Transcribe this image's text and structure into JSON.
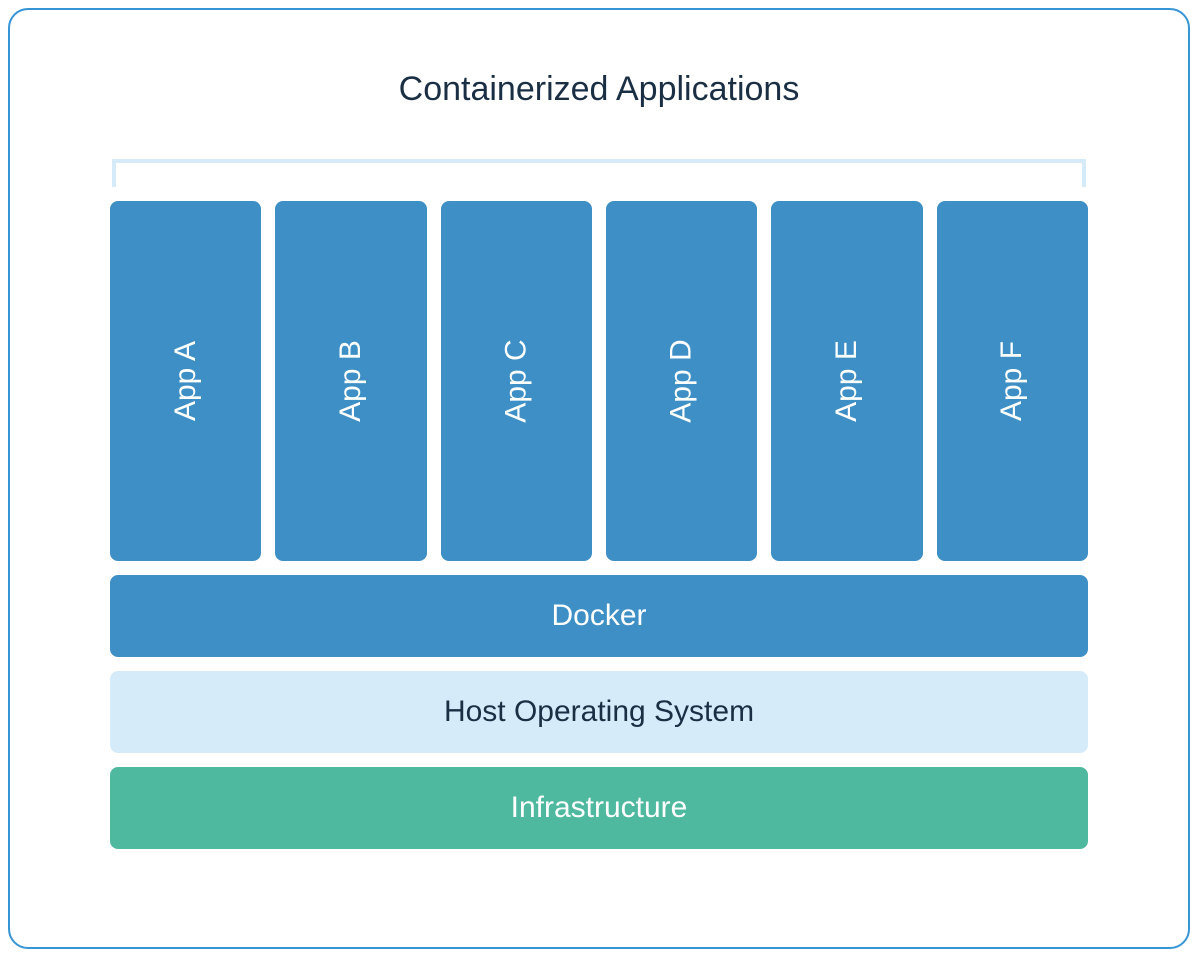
{
  "diagram": {
    "title": "Containerized Applications",
    "title_color": "#1a2e44",
    "title_fontsize": 34,
    "border_color": "#3795d5",
    "border_radius": 20,
    "background_color": "#ffffff",
    "bracket_color": "#d6ebfa",
    "apps": [
      {
        "label": "App A",
        "bg_color": "#3d8fc5",
        "text_color": "#ffffff"
      },
      {
        "label": "App B",
        "bg_color": "#3d8fc5",
        "text_color": "#ffffff"
      },
      {
        "label": "App C",
        "bg_color": "#3d8fc5",
        "text_color": "#ffffff"
      },
      {
        "label": "App D",
        "bg_color": "#3d8fc5",
        "text_color": "#ffffff"
      },
      {
        "label": "App E",
        "bg_color": "#3d8fc5",
        "text_color": "#ffffff"
      },
      {
        "label": "App F",
        "bg_color": "#3d8fc5",
        "text_color": "#ffffff"
      }
    ],
    "app_box_height": 360,
    "app_gap": 14,
    "app_border_radius": 8,
    "app_fontsize": 30,
    "layers": [
      {
        "label": "Docker",
        "bg_color": "#3d8fc5",
        "text_color": "#ffffff"
      },
      {
        "label": "Host Operating System",
        "bg_color": "#d6ebfa",
        "text_color": "#1a2e44"
      },
      {
        "label": "Infrastructure",
        "bg_color": "#4fb99f",
        "text_color": "#ffffff"
      }
    ],
    "layer_height": 82,
    "layer_gap": 14,
    "layer_border_radius": 8,
    "layer_fontsize": 30
  }
}
